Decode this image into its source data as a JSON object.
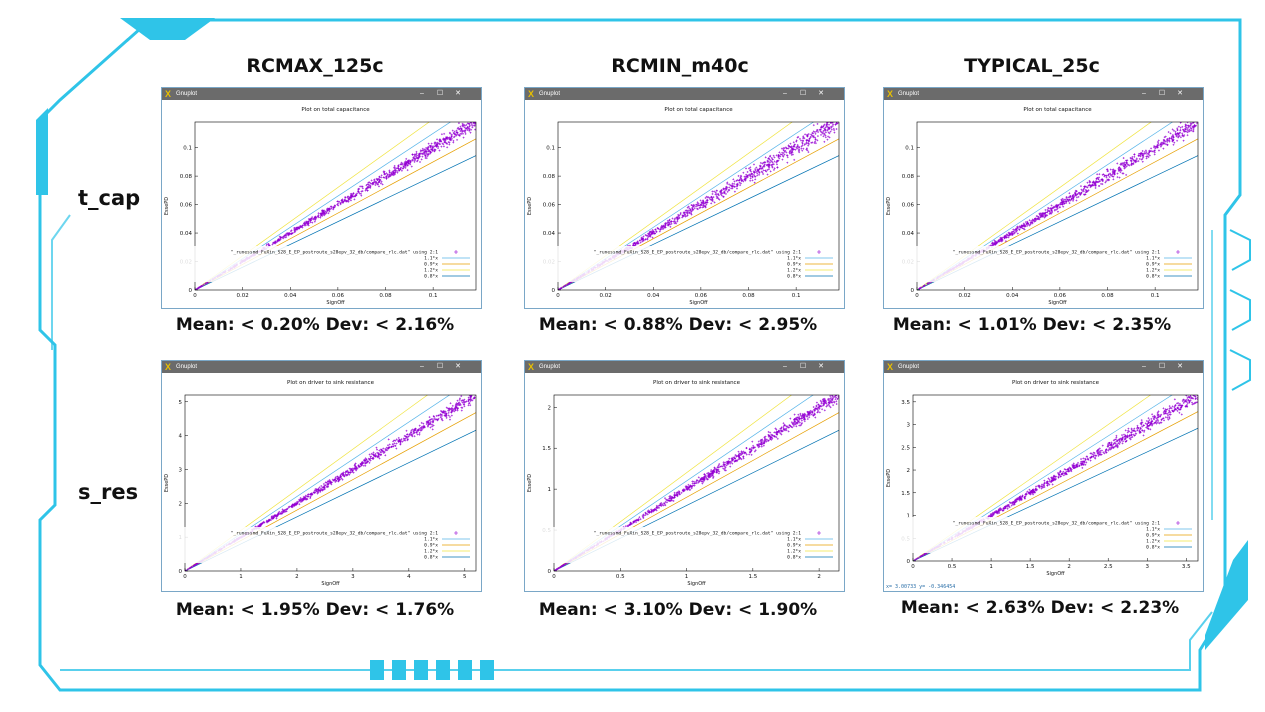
{
  "columns": [
    "RCMAX_125c",
    "RCMIN_m40c",
    "TYPICAL_25c"
  ],
  "rows": [
    "t_cap",
    "s_res"
  ],
  "window": {
    "app_title": "Gnuplot",
    "minimize": "–",
    "maximize": "☐",
    "close": "✕"
  },
  "colors": {
    "scatter": "#9400d3",
    "line_1_1": "#56b4e9",
    "line_0_9": "#e69f00",
    "line_1_2": "#f0e442",
    "line_0_8": "#0072b2",
    "frame_accent": "#2fc4e8"
  },
  "chart_data": [
    {
      "type": "scatter",
      "title": "Plot on total capacitance",
      "xlabel": "SignOff",
      "ylabel": "EssePD",
      "xlim": [
        0,
        0.118
      ],
      "ylim": [
        0,
        0.118
      ],
      "xticks": [
        0,
        0.02,
        0.04,
        0.06,
        0.08,
        0.1
      ],
      "xtick_labels": [
        "0",
        "0.02",
        "0.04",
        "0.06",
        "0.08",
        "0.1"
      ],
      "yticks": [
        0,
        0.02,
        0.04,
        0.06,
        0.08,
        0.1
      ],
      "ytick_labels": [
        "0",
        "0.02",
        "0.04",
        "0.06",
        "0.08",
        "0.1"
      ],
      "legend": [
        "\"_runessmd_FuXin_S28_E_EP_postroute_s28epv_32_db/compare_rlc.dat\" using 2:1",
        "1.1*x",
        "0.9*x",
        "1.2*x",
        "0.8*x"
      ],
      "slopes": [
        1.1,
        0.9,
        1.2,
        0.8
      ],
      "scatter_slope": 1.0,
      "scatter_spread": 0.02,
      "scatter_xmax": 0.118,
      "caption": "Mean: < 0.20% Dev: < 2.16%"
    },
    {
      "type": "scatter",
      "title": "Plot on total capacitance",
      "xlabel": "SignOff",
      "ylabel": "EssePD",
      "xlim": [
        0,
        0.118
      ],
      "ylim": [
        0,
        0.118
      ],
      "xticks": [
        0,
        0.02,
        0.04,
        0.06,
        0.08,
        0.1
      ],
      "xtick_labels": [
        "0",
        "0.02",
        "0.04",
        "0.06",
        "0.08",
        "0.1"
      ],
      "yticks": [
        0,
        0.02,
        0.04,
        0.06,
        0.08,
        0.1
      ],
      "ytick_labels": [
        "0",
        "0.02",
        "0.04",
        "0.06",
        "0.08",
        "0.1"
      ],
      "legend": [
        "\"_runessmd_FuXin_S28_E_EP_postroute_s28epv_32_db/compare_rlc.dat\" using 2:1",
        "1.1*x",
        "0.9*x",
        "1.2*x",
        "0.8*x"
      ],
      "slopes": [
        1.1,
        0.9,
        1.2,
        0.8
      ],
      "scatter_slope": 1.0,
      "scatter_spread": 0.03,
      "scatter_xmax": 0.118,
      "caption": "Mean: < 0.88% Dev: < 2.95%"
    },
    {
      "type": "scatter",
      "title": "Plot on total capacitance",
      "xlabel": "SignOff",
      "ylabel": "EssePD",
      "xlim": [
        0,
        0.118
      ],
      "ylim": [
        0,
        0.118
      ],
      "xticks": [
        0,
        0.02,
        0.04,
        0.06,
        0.08,
        0.1
      ],
      "xtick_labels": [
        "0",
        "0.02",
        "0.04",
        "0.06",
        "0.08",
        "0.1"
      ],
      "yticks": [
        0,
        0.02,
        0.04,
        0.06,
        0.08,
        0.1
      ],
      "ytick_labels": [
        "0",
        "0.02",
        "0.04",
        "0.06",
        "0.08",
        "0.1"
      ],
      "legend": [
        "\"_runessmd_FuXin_S28_E_EP_postroute_s28epv_32_db/compare_rlc.dat\" using 2:1",
        "1.1*x",
        "0.9*x",
        "1.2*x",
        "0.8*x"
      ],
      "slopes": [
        1.1,
        0.9,
        1.2,
        0.8
      ],
      "scatter_slope": 1.0,
      "scatter_spread": 0.024,
      "scatter_xmax": 0.118,
      "caption": "Mean: < 1.01% Dev: < 2.35%"
    },
    {
      "type": "scatter",
      "title": "Plot on driver to sink resistance",
      "xlabel": "SignOff",
      "ylabel": "EssePD",
      "xlim": [
        0,
        5.2
      ],
      "ylim": [
        0,
        5.2
      ],
      "xticks": [
        0,
        1,
        2,
        3,
        4,
        5
      ],
      "xtick_labels": [
        "0",
        "1",
        "2",
        "3",
        "4",
        "5"
      ],
      "yticks": [
        0,
        1,
        2,
        3,
        4,
        5
      ],
      "ytick_labels": [
        "0",
        "1",
        "2",
        "3",
        "4",
        "5"
      ],
      "legend": [
        "\"_runessmd_FuXin_S28_E_EP_postroute_s28epv_32_db/compare_rlc.dat\" using 2:1",
        "1.1*x",
        "0.9*x",
        "1.2*x",
        "0.8*x"
      ],
      "slopes": [
        1.1,
        0.9,
        1.2,
        0.8
      ],
      "scatter_slope": 1.0,
      "scatter_spread": 0.018,
      "scatter_xmax": 5.2,
      "caption": "Mean: < 1.95% Dev: < 1.76%"
    },
    {
      "type": "scatter",
      "title": "Plot on driver to sink resistance",
      "xlabel": "SignOff",
      "ylabel": "EssePD",
      "xlim": [
        0,
        2.15
      ],
      "ylim": [
        0,
        2.15
      ],
      "xticks": [
        0,
        0.5,
        1,
        1.5,
        2
      ],
      "xtick_labels": [
        "0",
        "0.5",
        "1",
        "1.5",
        "2"
      ],
      "yticks": [
        0,
        0.5,
        1,
        1.5,
        2
      ],
      "ytick_labels": [
        "0",
        "0.5",
        "1",
        "1.5",
        "2"
      ],
      "legend": [
        "\"_runessmd_FuXin_S28_E_EP_postroute_s28epv_32_db/compare_rlc.dat\" using 2:1",
        "1.1*x",
        "0.9*x",
        "1.2*x",
        "0.8*x"
      ],
      "slopes": [
        1.1,
        0.9,
        1.2,
        0.8
      ],
      "scatter_slope": 1.0,
      "scatter_spread": 0.019,
      "scatter_xmax": 2.15,
      "caption": "Mean: < 3.10% Dev: < 1.90%"
    },
    {
      "type": "scatter",
      "title": "Plot on driver to sink resistance",
      "xlabel": "SignOff",
      "ylabel": "EssePD",
      "xlim": [
        0,
        3.65
      ],
      "ylim": [
        0,
        3.65
      ],
      "xticks": [
        0,
        0.5,
        1,
        1.5,
        2,
        2.5,
        3,
        3.5
      ],
      "xtick_labels": [
        "0",
        "0.5",
        "1",
        "1.5",
        "2",
        "2.5",
        "3",
        "3.5"
      ],
      "yticks": [
        0,
        0.5,
        1,
        1.5,
        2,
        2.5,
        3,
        3.5
      ],
      "ytick_labels": [
        "0",
        "0.5",
        "1",
        "1.5",
        "2",
        "2.5",
        "3",
        "3.5"
      ],
      "legend": [
        "\"_runessmd_FuXin_S28_E_EP_postroute_s28epv_32_db/compare_rlc.dat\" using 2:1",
        "1.1*x",
        "0.9*x",
        "1.2*x",
        "0.8*x"
      ],
      "slopes": [
        1.1,
        0.9,
        1.2,
        0.8
      ],
      "scatter_slope": 1.0,
      "scatter_spread": 0.022,
      "scatter_xmax": 3.65,
      "caption": "Mean: < 2.63% Dev: < 2.23%",
      "status": "x=   3.00733 y=  -0.346454"
    }
  ]
}
